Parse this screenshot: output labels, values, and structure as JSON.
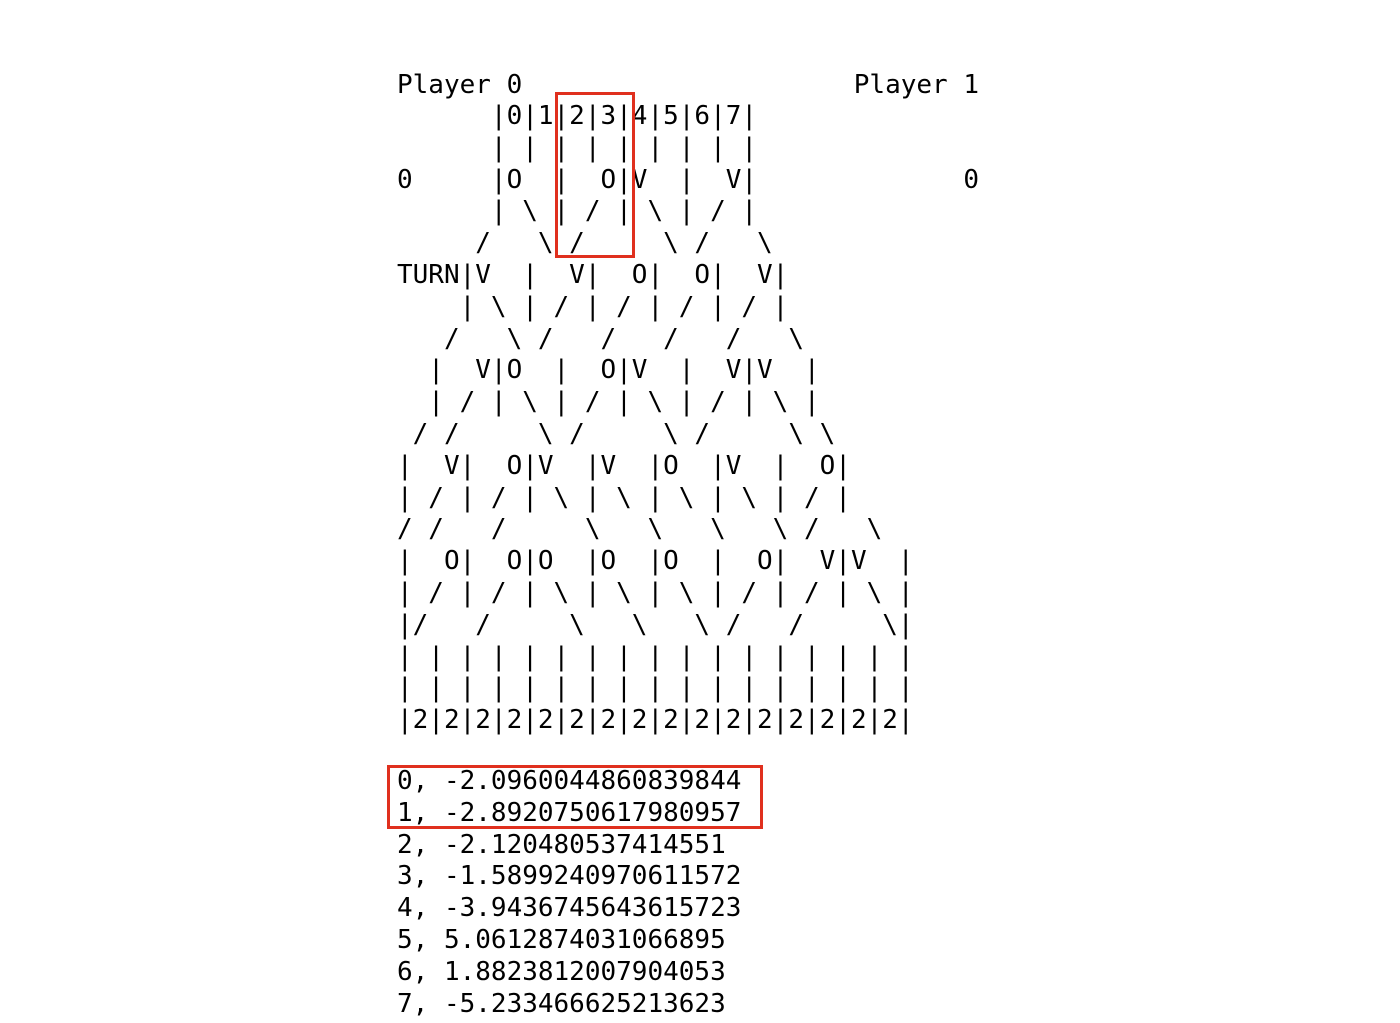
{
  "header": {
    "player0_label": "Player 0",
    "player1_label": "Player 1",
    "player0_score": "0",
    "player1_score": "0",
    "turn_indicator": "TURN"
  },
  "board": {
    "rows": [
      "      |0|1|2|3|4|5|6|7|",
      "      | | | | | | | | |",
      "      |O  |  O|V  |  V|",
      "      | \\ | / | \\ | / |",
      "     /   \\ /     \\ /   \\",
      "    |V  |  V|  O|  O|  V|",
      "    | \\ | / | / | / | / |",
      "   /   \\ /   /   /   /   \\",
      "  |  V|O  |  O|V  |  V|V  |",
      "  | / | \\ | / | \\ | / | \\ |",
      " / /     \\ /     \\ /     \\ \\",
      "|  V|  O|V  |V  |O  |V  |  O|",
      "| / | / | \\ | \\ | \\ | \\ | / |",
      "/ /   /     \\   \\   \\   \\ /   \\",
      "|  O|  O|O  |O  |O  |  O|  V|V  |",
      "| / | / | \\ | \\ | \\ | / | / | \\ |",
      "|/   /     \\   \\   \\ /   /     \\|",
      "| | | | | | | | | | | | | | | | |",
      "| | | | | | | | | | | | | | | | |",
      "|2|2|2|2|2|2|2|2|2|2|2|2|2|2|2|2|"
    ]
  },
  "evaluations": [
    "0, -2.0960044860839844",
    "1, -2.8920750617980957",
    "2, -2.120480537414551",
    "3, -1.5899240970611572",
    "4, -3.9436745643615723",
    "5, 5.0612874031066895",
    "6, 1.8823812007904053",
    "7, -5.233466625213623"
  ],
  "colors": {
    "highlight": "#e0301e",
    "text": "#000000",
    "background": "#ffffff"
  }
}
